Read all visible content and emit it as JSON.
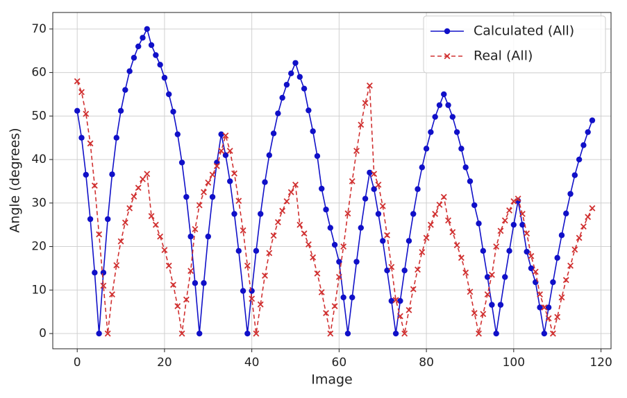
{
  "chart_data": {
    "type": "line",
    "xlabel": "Image",
    "ylabel": "Angle (degrees)",
    "x": [
      0,
      1,
      2,
      3,
      4,
      5,
      6,
      7,
      8,
      9,
      10,
      11,
      12,
      13,
      14,
      15,
      16,
      17,
      18,
      19,
      20,
      21,
      22,
      23,
      24,
      25,
      26,
      27,
      28,
      29,
      30,
      31,
      32,
      33,
      34,
      35,
      36,
      37,
      38,
      39,
      40,
      41,
      42,
      43,
      44,
      45,
      46,
      47,
      48,
      49,
      50,
      51,
      52,
      53,
      54,
      55,
      56,
      57,
      58,
      59,
      60,
      61,
      62,
      63,
      64,
      65,
      66,
      67,
      68,
      69,
      70,
      71,
      72,
      73,
      74,
      75,
      76,
      77,
      78,
      79,
      80,
      81,
      82,
      83,
      84,
      85,
      86,
      87,
      88,
      89,
      90,
      91,
      92,
      93,
      94,
      95,
      96,
      97,
      98,
      99,
      100,
      101,
      102,
      103,
      104,
      105,
      106,
      107,
      108,
      109,
      110,
      111,
      112,
      113,
      114,
      115,
      116,
      117,
      118
    ],
    "series": [
      {
        "name": "Calculated (All)",
        "color": "#1010c8",
        "marker": "circle",
        "linestyle": "solid",
        "values": [
          51.2,
          45,
          36.5,
          26.3,
          14,
          0,
          14,
          26.3,
          36.6,
          45,
          51.2,
          56,
          60.3,
          63.4,
          66,
          68,
          70,
          66.3,
          64,
          61.8,
          58.8,
          55,
          51,
          45.8,
          39.3,
          31.4,
          22.3,
          11.6,
          0,
          11.6,
          22.3,
          31.4,
          39.3,
          45.8,
          41,
          35,
          27.5,
          19,
          9.8,
          0,
          9.8,
          19,
          27.5,
          34.8,
          41,
          46,
          50.6,
          54.2,
          57.2,
          59.8,
          62.2,
          59,
          56.3,
          51.3,
          46.5,
          40.8,
          33.3,
          28.5,
          24.3,
          20.4,
          16.5,
          8.3,
          0,
          8.3,
          16.5,
          24.3,
          31,
          37,
          33.2,
          27.5,
          21.3,
          14.5,
          7.5,
          0,
          7.5,
          14.5,
          21.3,
          27.5,
          33.2,
          38.2,
          42.5,
          46.3,
          49.8,
          52.5,
          55,
          52.5,
          49.8,
          46.3,
          42.5,
          38.2,
          35,
          29.5,
          25.3,
          19,
          13,
          6.6,
          0,
          6.6,
          13,
          19,
          25,
          30.5,
          25,
          18.8,
          15,
          11.8,
          6,
          0,
          6,
          11.8,
          17.4,
          22.6,
          27.6,
          32.1,
          36.4,
          40,
          43.3,
          46.3,
          49
        ]
      },
      {
        "name": "Real (All)",
        "color": "#d03030",
        "marker": "x",
        "linestyle": "dashed",
        "values": [
          58,
          55.5,
          50.5,
          43.7,
          34,
          22.8,
          11,
          0,
          9,
          15.7,
          21.2,
          25.5,
          28.8,
          31.5,
          33.5,
          35.5,
          36.7,
          27,
          25,
          22.3,
          19.2,
          15.6,
          11.2,
          6.3,
          0,
          7.8,
          14.4,
          24,
          29.5,
          32.5,
          34.7,
          36.5,
          38.5,
          42,
          45.5,
          42,
          36.8,
          30.5,
          23.7,
          15.6,
          8,
          0,
          6.7,
          13.3,
          18.5,
          22.5,
          25.6,
          28.2,
          30.4,
          32.5,
          34.2,
          25,
          23,
          20.5,
          17.5,
          13.8,
          9.5,
          4.7,
          0,
          6.3,
          13,
          20,
          27.6,
          35,
          42,
          48,
          53,
          57,
          36.7,
          34.2,
          29.3,
          22.6,
          15.3,
          7.7,
          4,
          0,
          5.4,
          10.2,
          14.7,
          18.7,
          22,
          25,
          27.5,
          29.6,
          31.4,
          26,
          23.3,
          20.3,
          17.4,
          14,
          9.6,
          4.7,
          0,
          4.5,
          9,
          13.5,
          20,
          23.6,
          26,
          28.3,
          30.4,
          31,
          27.5,
          23,
          17.8,
          14.2,
          9,
          6,
          3.5,
          0,
          3.8,
          8.3,
          12.3,
          15.6,
          19.3,
          22,
          24.6,
          26.8,
          28.8
        ]
      }
    ],
    "xlim": [
      -5.6,
      122.3
    ],
    "ylim": [
      -3.5,
      73.8
    ],
    "xticks": [
      0,
      20,
      40,
      60,
      80,
      100,
      120
    ],
    "yticks": [
      0,
      10,
      20,
      30,
      40,
      50,
      60,
      70
    ],
    "grid": true,
    "legend": "upper right"
  }
}
